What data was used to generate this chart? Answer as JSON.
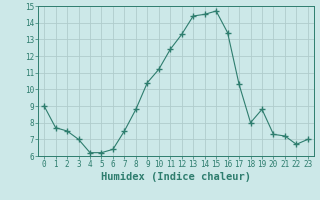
{
  "x": [
    0,
    1,
    2,
    3,
    4,
    5,
    6,
    7,
    8,
    9,
    10,
    11,
    12,
    13,
    14,
    15,
    16,
    17,
    18,
    19,
    20,
    21,
    22,
    23
  ],
  "y": [
    9.0,
    7.7,
    7.5,
    7.0,
    6.2,
    6.2,
    6.4,
    7.5,
    8.8,
    10.4,
    11.2,
    12.4,
    13.3,
    14.4,
    14.5,
    14.7,
    13.4,
    10.3,
    8.0,
    8.8,
    7.3,
    7.2,
    6.7,
    7.0
  ],
  "line_color": "#2e7d6e",
  "marker": "+",
  "marker_size": 4,
  "bg_color": "#cce8e8",
  "grid_color": "#b0cccc",
  "xlabel": "Humidex (Indice chaleur)",
  "xlim": [
    -0.5,
    23.5
  ],
  "ylim": [
    6,
    15
  ],
  "yticks": [
    6,
    7,
    8,
    9,
    10,
    11,
    12,
    13,
    14,
    15
  ],
  "xticks": [
    0,
    1,
    2,
    3,
    4,
    5,
    6,
    7,
    8,
    9,
    10,
    11,
    12,
    13,
    14,
    15,
    16,
    17,
    18,
    19,
    20,
    21,
    22,
    23
  ],
  "tick_color": "#2e7d6e",
  "tick_fontsize": 5.5,
  "xlabel_fontsize": 7.5
}
